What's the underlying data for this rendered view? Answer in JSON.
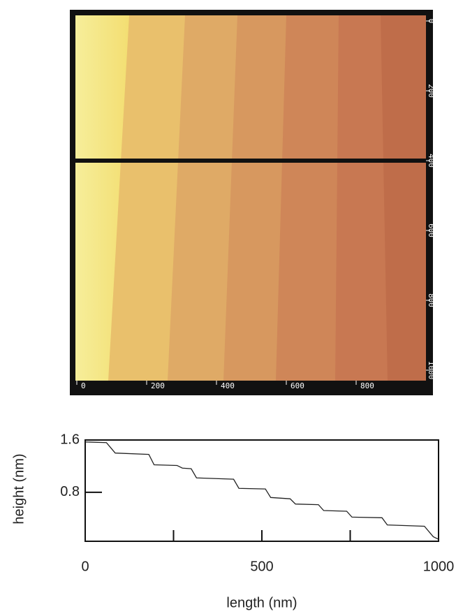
{
  "chart_data": [
    {
      "type": "image",
      "xlim": [
        0,
        1000
      ],
      "ylim": [
        0,
        1000
      ],
      "xticks": [
        0,
        200,
        400,
        600,
        800
      ],
      "yticks": [
        0,
        200,
        400,
        600,
        800,
        1000
      ],
      "cut_line_y": 400
    },
    {
      "type": "line",
      "xlabel": "length (nm)",
      "ylabel": "height (nm)",
      "xlim": [
        0,
        1000
      ],
      "ylim": [
        0.05,
        1.6
      ],
      "xticks": [
        0,
        500,
        1000
      ],
      "xminorticks": [
        250,
        750
      ],
      "yticks": [
        0.8,
        1.6
      ],
      "color": "#222222",
      "x": [
        0,
        60,
        85,
        180,
        195,
        260,
        275,
        300,
        315,
        420,
        435,
        510,
        525,
        580,
        595,
        660,
        675,
        740,
        755,
        840,
        855,
        960,
        985,
        1000
      ],
      "y": [
        1.57,
        1.56,
        1.4,
        1.38,
        1.22,
        1.21,
        1.17,
        1.16,
        1.02,
        1.0,
        0.86,
        0.85,
        0.72,
        0.7,
        0.62,
        0.61,
        0.52,
        0.51,
        0.42,
        0.41,
        0.3,
        0.28,
        0.12,
        0.08
      ]
    }
  ]
}
